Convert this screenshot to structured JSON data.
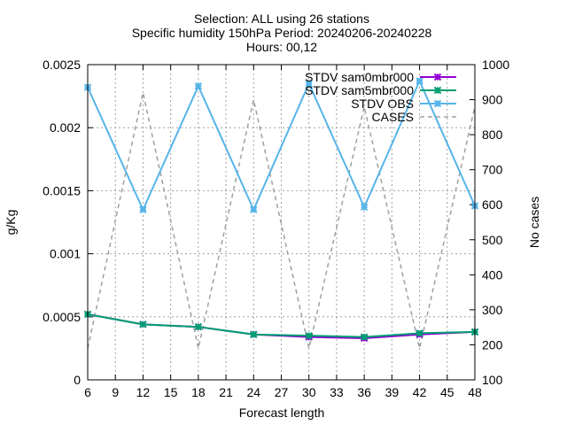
{
  "chart_data": {
    "type": "line",
    "title_lines": [
      "Selection: ALL using    26 stations",
      "Specific humidity 150hPa   Period: 20240206-20240228",
      "Hours: 00,12"
    ],
    "xlabel": "Forecast length",
    "ylabel": "g/Kg",
    "y2label": "No cases",
    "x": [
      6,
      12,
      18,
      24,
      30,
      36,
      42,
      48
    ],
    "xlim": [
      6,
      48
    ],
    "xticks": [
      "6",
      "9",
      "12",
      "15",
      "18",
      "21",
      "24",
      "27",
      "30",
      "33",
      "36",
      "39",
      "42",
      "45",
      "48"
    ],
    "ylim": [
      0,
      0.0025
    ],
    "yticks": [
      "0",
      "0.0005",
      "0.001",
      "0.0015",
      "0.002",
      "0.0025"
    ],
    "y2lim": [
      100,
      1000
    ],
    "y2ticks": [
      "100",
      "200",
      "300",
      "400",
      "500",
      "600",
      "700",
      "800",
      "900",
      "1000"
    ],
    "grid": true,
    "legend_position": "top-right",
    "series": [
      {
        "name": "STDV sam0mbr000",
        "color": "#9400d3",
        "marker": "x-cross",
        "axis": "y",
        "dash": "solid",
        "values": [
          0.00052,
          0.00044,
          0.00042,
          0.00036,
          0.00034,
          0.00033,
          0.00036,
          0.00038
        ]
      },
      {
        "name": "STDV sam5mbr000",
        "color": "#009e73",
        "marker": "x-cross",
        "axis": "y",
        "dash": "solid",
        "values": [
          0.00052,
          0.00044,
          0.00042,
          0.00036,
          0.00035,
          0.00034,
          0.00037,
          0.00038
        ]
      },
      {
        "name": "STDV OBS",
        "color": "#56b4e9",
        "marker": "x-cross",
        "axis": "y",
        "dash": "solid",
        "values": [
          0.00232,
          0.00135,
          0.00233,
          0.00135,
          0.00235,
          0.00137,
          0.00237,
          0.00138
        ]
      },
      {
        "name": "CASES",
        "color": "#a0a0a0",
        "marker": "none",
        "axis": "y2",
        "dash": "dashed",
        "values": [
          190,
          920,
          190,
          900,
          190,
          880,
          190,
          880
        ]
      }
    ]
  }
}
